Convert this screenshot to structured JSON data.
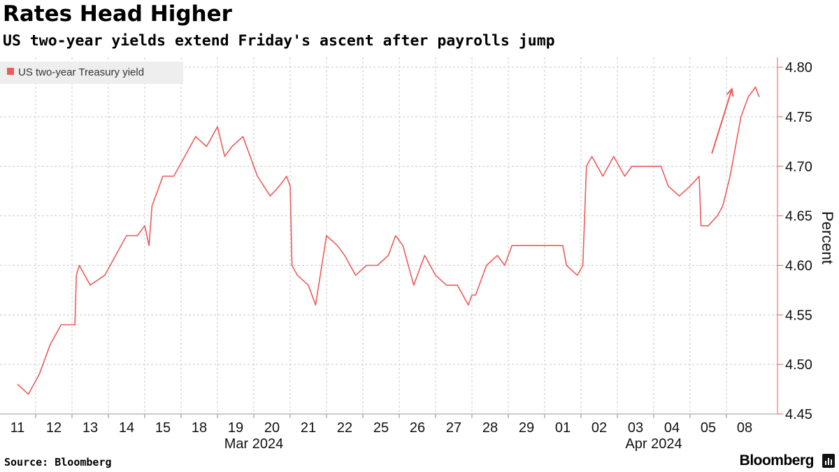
{
  "title": "Rates Head Higher",
  "subtitle": "US two-year yields extend Friday's ascent after payrolls jump",
  "footer": {
    "source": "Source: Bloomberg",
    "brand": "Bloomberg"
  },
  "colors": {
    "series": "#ee5a5a",
    "legend_bg": "#eeeeee",
    "grid": "#c8c8c8",
    "axis": "#ee5a5a"
  },
  "chart_data": {
    "type": "line",
    "ylabel": "Percent",
    "ylim": [
      4.45,
      4.81
    ],
    "yticks": [
      "4.45",
      "4.50",
      "4.55",
      "4.60",
      "4.65",
      "4.70",
      "4.75",
      "4.80"
    ],
    "y_axis_side": "right",
    "grid": true,
    "legend_position": "top-left",
    "categories": [
      "11",
      "12",
      "13",
      "14",
      "15",
      "18",
      "19",
      "20",
      "21",
      "22",
      "25",
      "26",
      "27",
      "28",
      "29",
      "01",
      "02",
      "03",
      "04",
      "05",
      "08"
    ],
    "month_labels": [
      {
        "label": "Mar 2024",
        "at_index": 6.5
      },
      {
        "label": "Apr 2024",
        "at_index": 17.5
      }
    ],
    "annotation": "upward-arrow",
    "series": [
      {
        "name": "US two-year Treasury yield",
        "x": [
          0,
          0.3,
          0.6,
          0.9,
          1.2,
          1.5,
          1.58,
          1.62,
          1.7,
          2.0,
          2.4,
          2.7,
          3.0,
          3.3,
          3.5,
          3.62,
          3.7,
          4.0,
          4.3,
          4.6,
          4.9,
          5.2,
          5.5,
          5.7,
          5.9,
          6.2,
          6.4,
          6.6,
          6.95,
          7.2,
          7.4,
          7.5,
          7.55,
          7.7,
          8.0,
          8.2,
          8.5,
          8.8,
          9.0,
          9.3,
          9.6,
          9.9,
          10.2,
          10.4,
          10.6,
          10.9,
          11.2,
          11.5,
          11.8,
          12.1,
          12.4,
          12.5,
          12.6,
          12.9,
          13.2,
          13.4,
          13.6,
          13.85,
          15.0,
          15.1,
          15.4,
          15.55,
          15.65,
          15.8,
          16.1,
          16.4,
          16.7,
          16.9,
          17.2,
          17.5,
          17.7,
          17.9,
          18.2,
          18.5,
          18.75,
          18.8,
          19.0,
          19.25,
          19.4,
          19.6,
          19.75,
          19.9,
          20.1,
          20.3,
          20.4
        ],
        "values": [
          4.48,
          4.47,
          4.49,
          4.52,
          4.54,
          4.54,
          4.54,
          4.59,
          4.6,
          4.58,
          4.59,
          4.61,
          4.63,
          4.63,
          4.64,
          4.62,
          4.66,
          4.69,
          4.69,
          4.71,
          4.73,
          4.72,
          4.74,
          4.71,
          4.72,
          4.73,
          4.71,
          4.69,
          4.67,
          4.68,
          4.69,
          4.68,
          4.6,
          4.59,
          4.58,
          4.56,
          4.63,
          4.62,
          4.61,
          4.59,
          4.6,
          4.6,
          4.61,
          4.63,
          4.62,
          4.58,
          4.61,
          4.59,
          4.58,
          4.58,
          4.56,
          4.57,
          4.57,
          4.6,
          4.61,
          4.6,
          4.62,
          4.62,
          4.62,
          4.6,
          4.59,
          4.6,
          4.7,
          4.71,
          4.69,
          4.71,
          4.69,
          4.7,
          4.7,
          4.7,
          4.7,
          4.68,
          4.67,
          4.68,
          4.69,
          4.64,
          4.64,
          4.65,
          4.66,
          4.69,
          4.72,
          4.75,
          4.77,
          4.78,
          4.77
        ]
      }
    ]
  }
}
